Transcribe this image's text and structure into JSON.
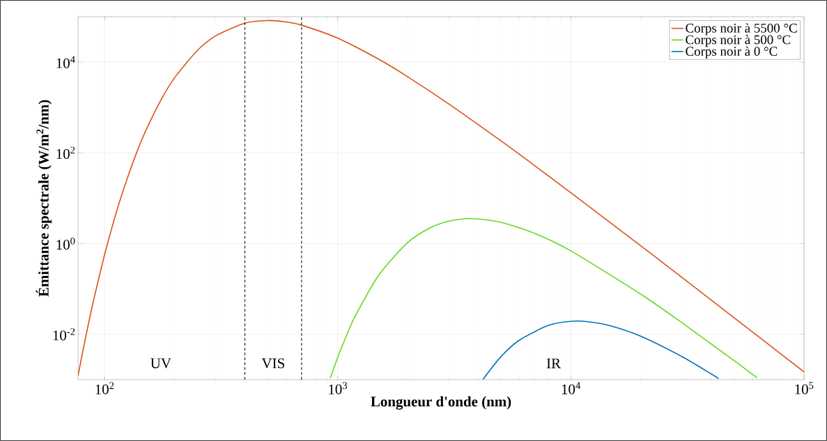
{
  "chart_data": {
    "type": "line",
    "xlabel": "Longueur d'onde (nm)",
    "ylabel": "Émittance spectrale (W/m$^{2}$/nm)",
    "log": "xy",
    "grid": true,
    "legend": "top right",
    "marker": "none",
    "line_style": "solid",
    "xlim": [
      77,
      100000
    ],
    "ylim": [
      0.001,
      100000
    ],
    "xticks": [
      {
        "value": 100,
        "label": "10$^{2}$"
      },
      {
        "value": 1000,
        "label": "10$^{3}$"
      },
      {
        "value": 10000,
        "label": "10$^{4}$"
      },
      {
        "value": 100000,
        "label": "10$^{5}$"
      }
    ],
    "yticks": [
      {
        "value": 0.01,
        "label": "10$^{-2}$"
      },
      {
        "value": 1,
        "label": "10$^{0}$"
      },
      {
        "value": 100,
        "label": "10$^{2}$"
      },
      {
        "value": 10000,
        "label": "10$^{4}$"
      }
    ],
    "series": [
      {
        "name": "Corps noir à 5500 °C",
        "color": "#d95319",
        "x": [
          77,
          80,
          85,
          90,
          100,
          110,
          120,
          135,
          150,
          175,
          200,
          250,
          300,
          400,
          500,
          600,
          700,
          1000,
          1500,
          2000,
          3000,
          5000,
          7000,
          10000,
          20000,
          30000,
          50000,
          100000
        ],
        "values": [
          0.00122,
          0.00338,
          0.0156,
          0.0598,
          0.565,
          3.38,
          14.3,
          80.2,
          301,
          1493,
          4548,
          17970,
          38000,
          72200,
          82500,
          76800,
          65100,
          33700,
          11550,
          4720,
          1189,
          185,
          52.1,
          13.2,
          0.881,
          0.178,
          0.0234,
          0.00148
        ]
      },
      {
        "name": "Corps noir à 500 °C",
        "color": "#66d81c",
        "x": [
          930,
          1000,
          1100,
          1200,
          1500,
          2000,
          2500,
          3000,
          3750,
          5000,
          7000,
          10000,
          20000,
          30000,
          50000,
          60000,
          63000
        ],
        "values": [
          0.00109,
          0.0031,
          0.0104,
          0.0277,
          0.201,
          1.061,
          2.24,
          3.12,
          3.55,
          2.96,
          1.676,
          0.689,
          0.0761,
          0.0179,
          0.00265,
          0.00132,
          0.0011
        ]
      },
      {
        "name": "Corps noir à 0 °C",
        "color": "#0072bd",
        "x": [
          4200,
          5000,
          6000,
          8000,
          10000,
          12000,
          15000,
          20000,
          30000,
          40000,
          43000
        ],
        "values": [
          0.00102,
          0.00317,
          0.00737,
          0.01574,
          0.01935,
          0.01885,
          0.01511,
          0.00903,
          0.00321,
          0.001337,
          0.001057
        ]
      }
    ],
    "ref_lines": [
      {
        "axis": "x",
        "value": 400,
        "color": "#000000",
        "line_style": "dashed"
      },
      {
        "axis": "x",
        "value": 700,
        "color": "#000000",
        "line_style": "dashed"
      }
    ],
    "annotations": [
      "UV",
      "VIS",
      "IR"
    ]
  }
}
